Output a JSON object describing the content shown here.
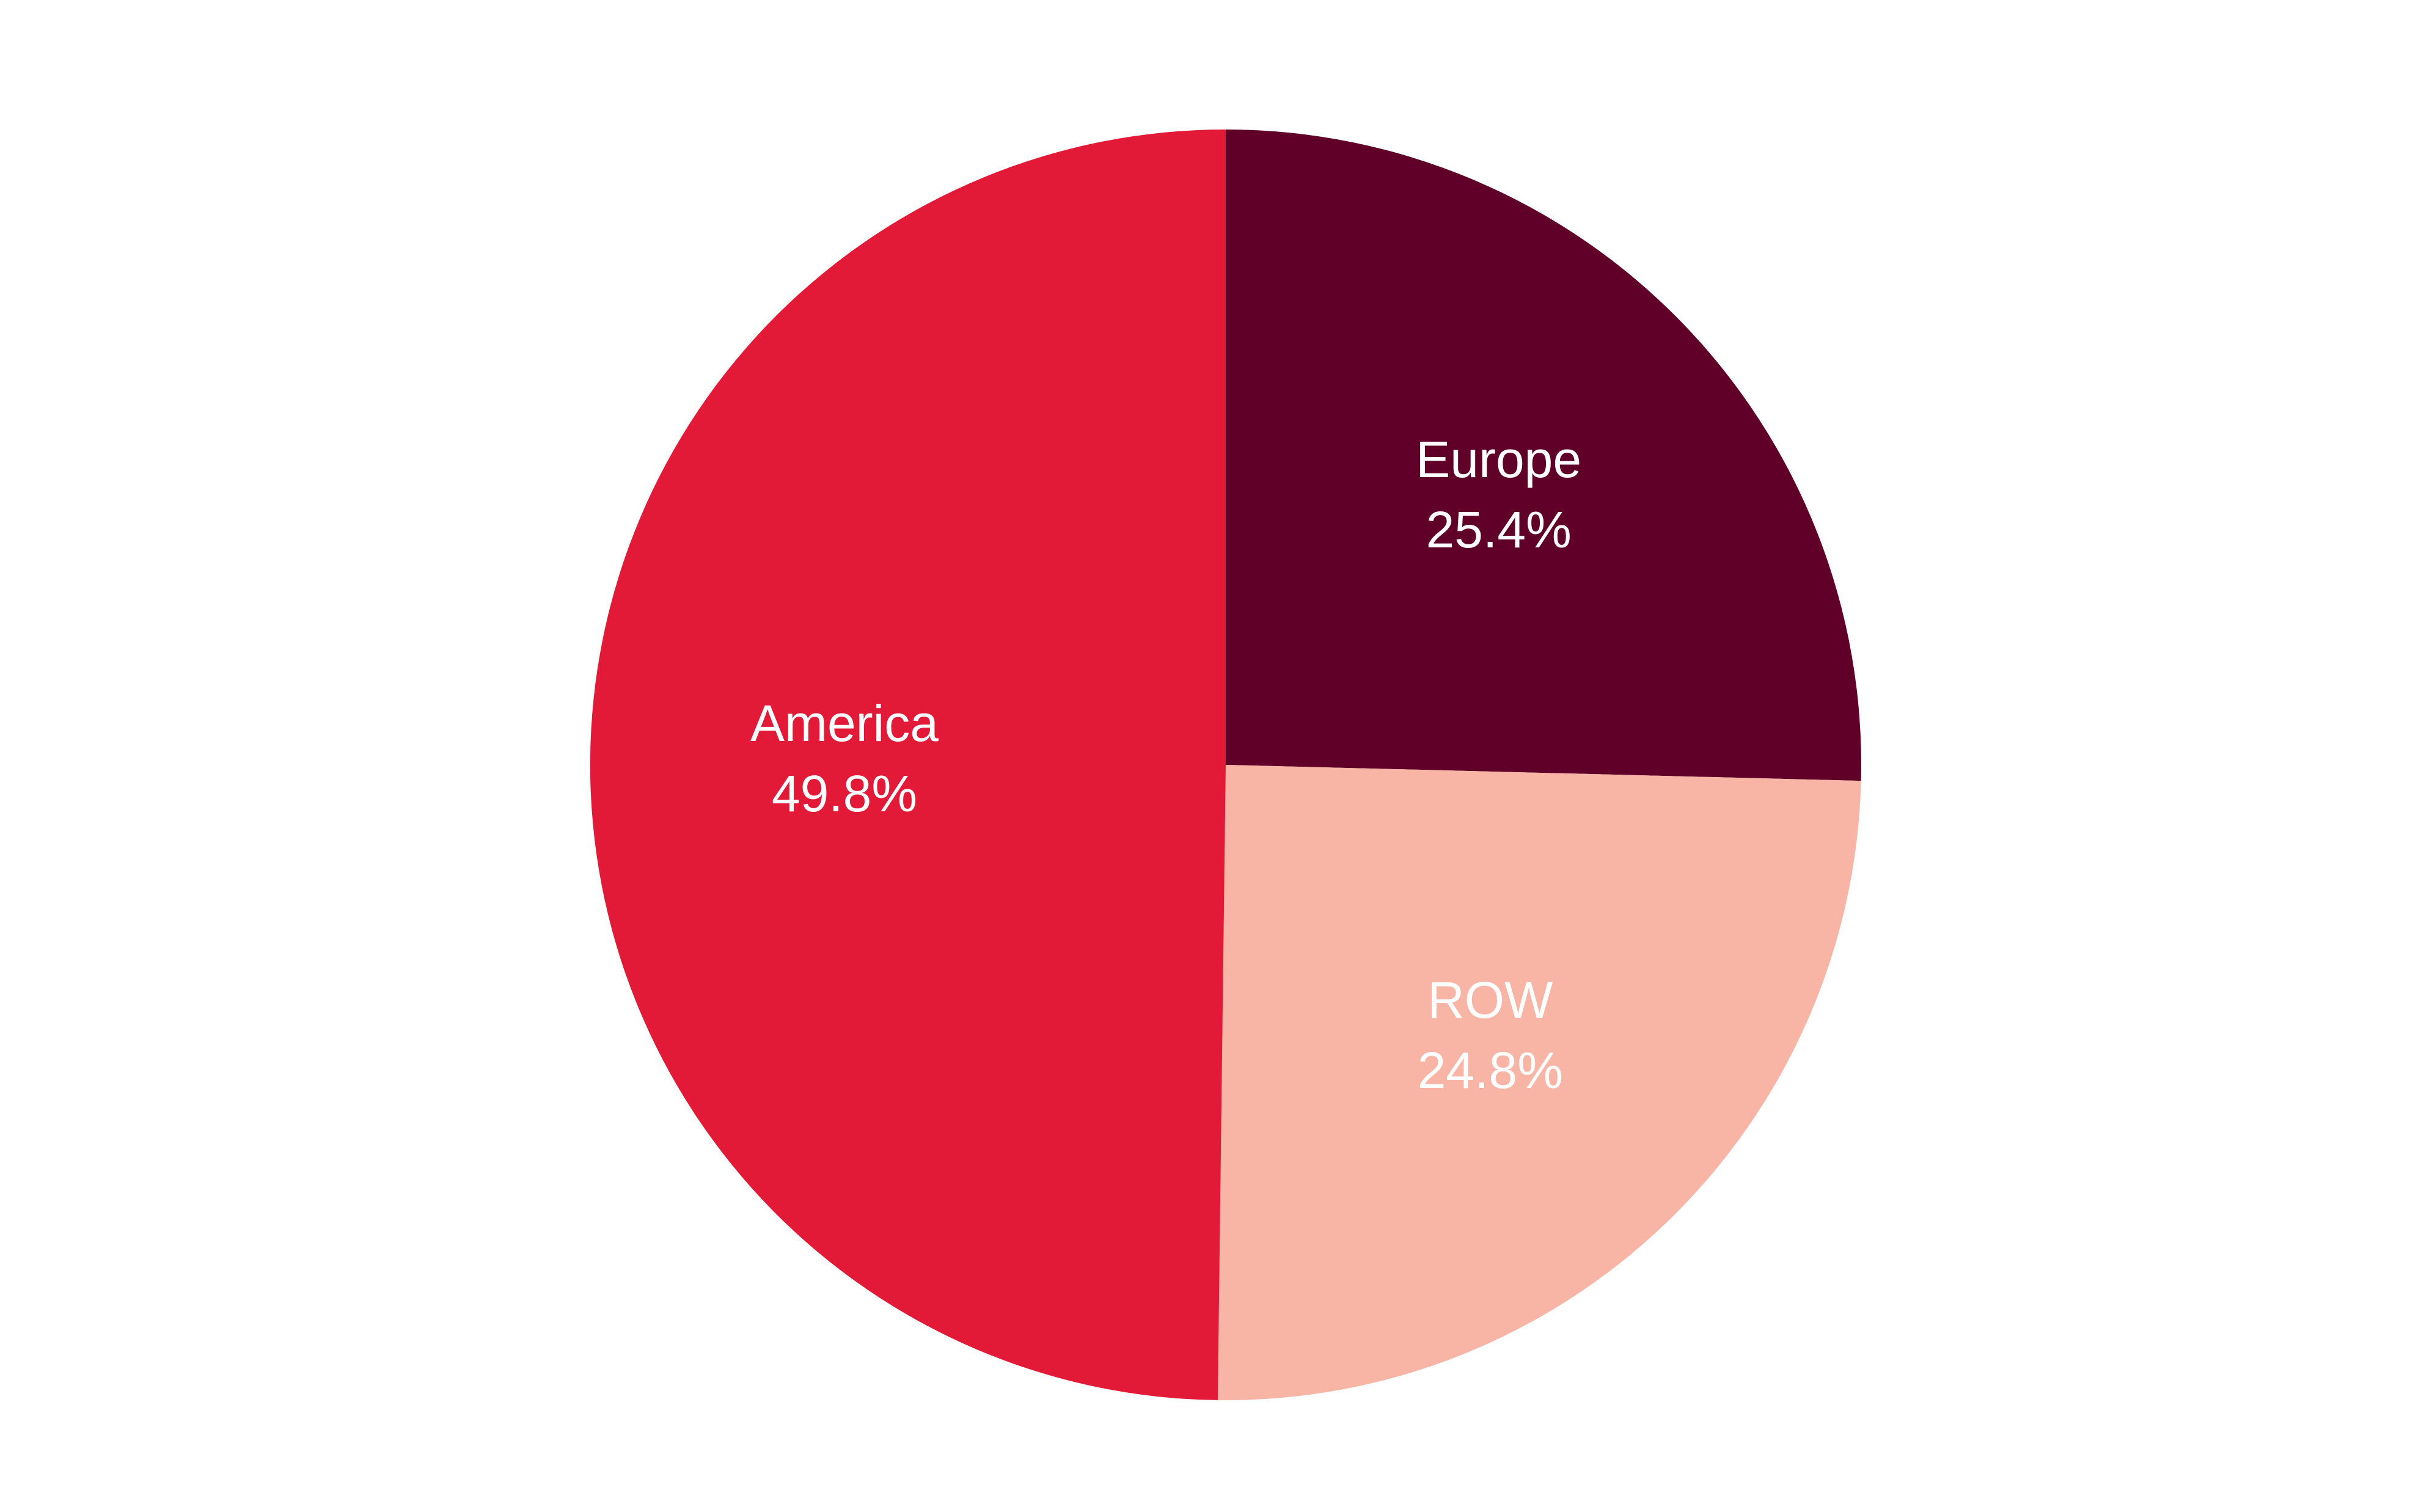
{
  "chart_data": {
    "type": "pie",
    "title": "",
    "slices": [
      {
        "label": "Europe",
        "value": 25.4,
        "value_label": "25.4%",
        "color": "#600029"
      },
      {
        "label": "ROW",
        "value": 24.8,
        "value_label": "24.8%",
        "color": "#F8B5A6"
      },
      {
        "label": "America",
        "value": 49.8,
        "value_label": "49.8%",
        "color": "#E21937"
      }
    ],
    "start_angle": "12 o'clock",
    "direction": "clockwise",
    "legend": "none",
    "labels_inside_slices": true
  }
}
